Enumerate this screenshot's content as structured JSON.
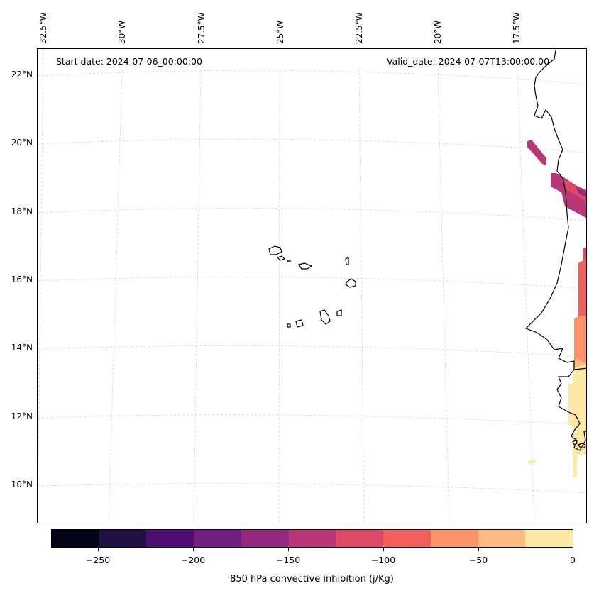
{
  "map": {
    "longitude_labels": [
      "32.5°W",
      "30°W",
      "27.5°W",
      "25°W",
      "22.5°W",
      "20°W",
      "17.5°W"
    ],
    "latitude_labels": [
      "22°N",
      "20°N",
      "18°N",
      "16°N",
      "14°N",
      "12°N",
      "10°N"
    ],
    "start_date": "Start date: 2024-07-06_00:00:00",
    "valid_date": "Valid_date: 2024-07-07T13:00:00.00"
  },
  "colorbar": {
    "title": "850 hPa convective inhibition (j/Kg)",
    "tick_labels": [
      "−250",
      "−200",
      "−150",
      "−100",
      "−50",
      "0"
    ],
    "colors": [
      "#050417",
      "#211044",
      "#4f0c72",
      "#721f81",
      "#932a7f",
      "#b73779",
      "#de4968",
      "#f1605d",
      "#fd9467",
      "#febb81",
      "#fde8a6"
    ]
  }
}
